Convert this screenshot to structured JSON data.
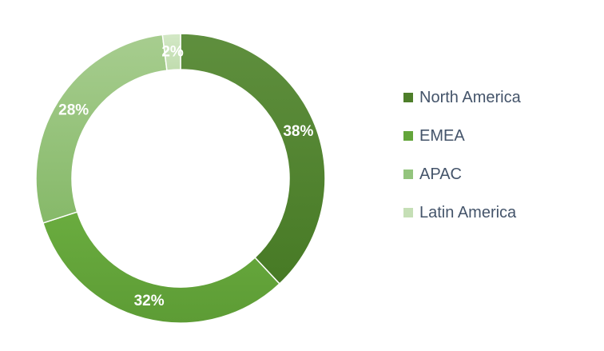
{
  "chart_data": {
    "type": "pie",
    "variant": "donut",
    "categories": [
      "North America",
      "EMEA",
      "APAC",
      "Latin America"
    ],
    "values": [
      38,
      32,
      28,
      2
    ],
    "data_labels": [
      "38%",
      "32%",
      "28%",
      "2%"
    ],
    "colors": [
      "#4e7e2a",
      "#63a53a",
      "#93c47d",
      "#c5dfb6"
    ],
    "gradients": [
      [
        "#5f8f3e",
        "#477a25"
      ],
      [
        "#6aac3f",
        "#5d9c35"
      ],
      [
        "#a7cd8f",
        "#86b969"
      ],
      [
        "#d3e8c6",
        "#c0dcae"
      ]
    ],
    "legend": {
      "position": "right",
      "entries": [
        "North America",
        "EMEA",
        "APAC",
        "Latin America"
      ]
    }
  }
}
